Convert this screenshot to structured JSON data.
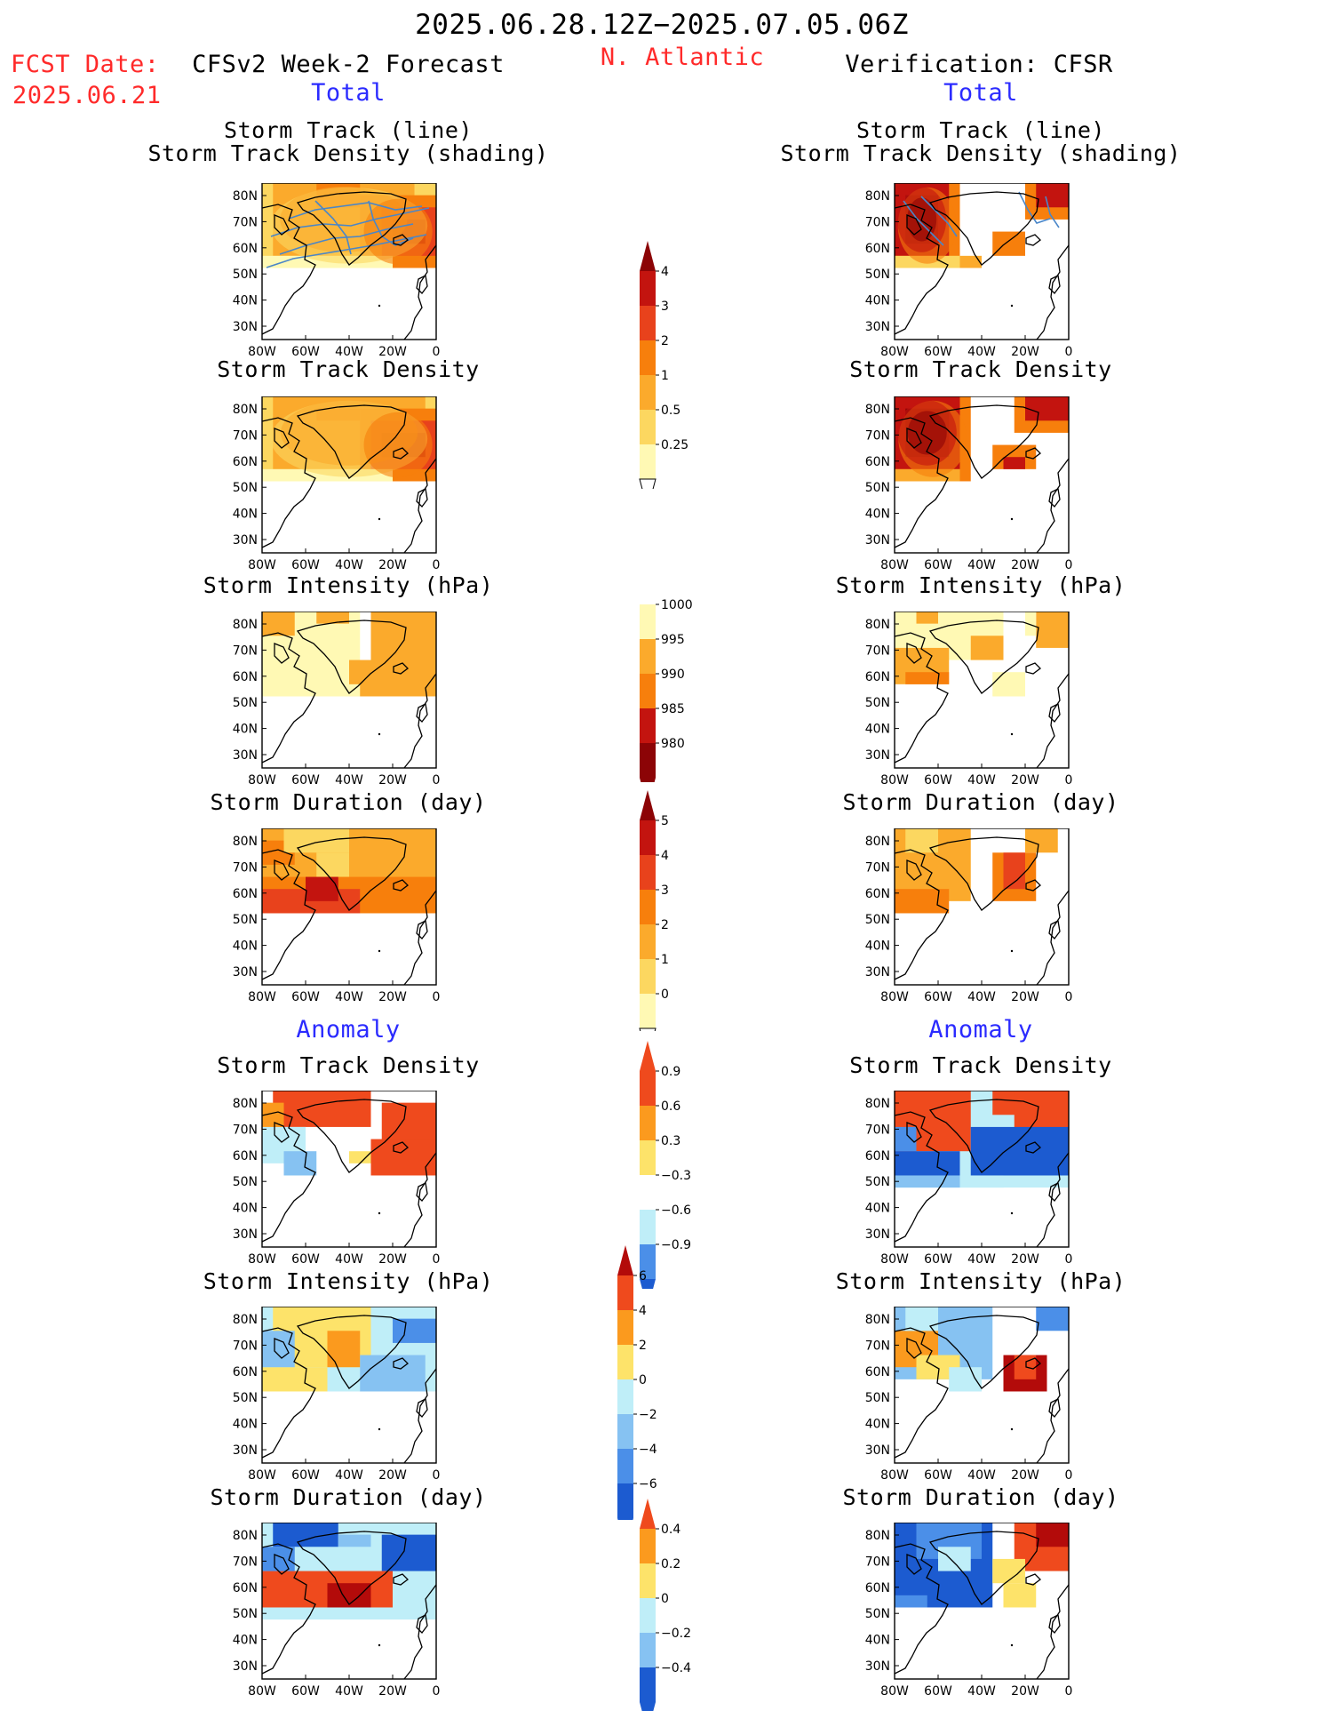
{
  "header": {
    "period": "2025.06.28.12Z−2025.07.05.06Z",
    "fcst_label": "FCST Date:",
    "fcst_date": "2025.06.21",
    "forecast_title": "CFSv2 Week-2 Forecast",
    "region": "N. Atlantic",
    "verification_title": "Verification: CFSR",
    "total_left": "Total",
    "total_right": "Total",
    "anomaly_left": "Anomaly",
    "anomaly_right": "Anomaly"
  },
  "panel_titles": {
    "track_line": "Storm Track (line)",
    "track_shading": "Storm Track Density (shading)",
    "density": "Storm Track Density",
    "intensity": "Storm Intensity (hPa)",
    "duration": "Storm Duration (day)"
  },
  "axes": {
    "lat_labels": [
      "80N",
      "70N",
      "60N",
      "50N",
      "40N",
      "30N"
    ],
    "lon_labels": [
      "80W",
      "60W",
      "40W",
      "20W",
      "0"
    ]
  },
  "colors": {
    "seq": [
      "#fff9b4",
      "#fcd760",
      "#fbaa2c",
      "#f77f0c",
      "#e8421c",
      "#c3140f",
      "#8c0406"
    ],
    "div_warm": [
      "#fde36a",
      "#fb9a1e",
      "#ef4a1d",
      "#b30b0a"
    ],
    "div_cool": [
      "#bfeef8",
      "#86c2f2",
      "#4b8fe8",
      "#1c5bd0"
    ]
  },
  "chart_data": [
    {
      "type": "heatmap",
      "name": "forecast_total_storm_track_line_density",
      "xlim": [
        -80,
        0
      ],
      "ylim": [
        25,
        85
      ],
      "legend": [
        "0.25",
        "0.5",
        "1",
        "2",
        "3",
        "4"
      ]
    },
    {
      "type": "heatmap",
      "name": "verification_total_storm_track_line_density",
      "xlim": [
        -80,
        0
      ],
      "ylim": [
        25,
        85
      ]
    },
    {
      "type": "heatmap",
      "name": "forecast_total_storm_track_density",
      "xlim": [
        -80,
        0
      ],
      "ylim": [
        25,
        85
      ]
    },
    {
      "type": "heatmap",
      "name": "verification_total_storm_track_density",
      "xlim": [
        -80,
        0
      ],
      "ylim": [
        25,
        85
      ]
    },
    {
      "type": "heatmap",
      "name": "forecast_total_storm_intensity_hpa",
      "xlim": [
        -80,
        0
      ],
      "ylim": [
        25,
        85
      ],
      "legend": [
        "1000",
        "995",
        "990",
        "985",
        "980"
      ]
    },
    {
      "type": "heatmap",
      "name": "verification_total_storm_intensity_hpa",
      "xlim": [
        -80,
        0
      ],
      "ylim": [
        25,
        85
      ]
    },
    {
      "type": "heatmap",
      "name": "forecast_total_storm_duration_day",
      "xlim": [
        -80,
        0
      ],
      "ylim": [
        25,
        85
      ],
      "legend": [
        "0",
        "1",
        "2",
        "3",
        "4",
        "5"
      ]
    },
    {
      "type": "heatmap",
      "name": "verification_total_storm_duration_day",
      "xlim": [
        -80,
        0
      ],
      "ylim": [
        25,
        85
      ]
    },
    {
      "type": "heatmap",
      "name": "forecast_anomaly_storm_track_density",
      "xlim": [
        -80,
        0
      ],
      "ylim": [
        25,
        85
      ],
      "legend": [
        "−0.9",
        "−0.6",
        "−0.3",
        "0.3",
        "0.6",
        "0.9"
      ]
    },
    {
      "type": "heatmap",
      "name": "verification_anomaly_storm_track_density",
      "xlim": [
        -80,
        0
      ],
      "ylim": [
        25,
        85
      ]
    },
    {
      "type": "heatmap",
      "name": "forecast_anomaly_storm_intensity_hpa",
      "xlim": [
        -80,
        0
      ],
      "ylim": [
        25,
        85
      ],
      "legend": [
        "−6",
        "−4",
        "−2",
        "0",
        "2",
        "4",
        "6"
      ]
    },
    {
      "type": "heatmap",
      "name": "verification_anomaly_storm_intensity_hpa",
      "xlim": [
        -80,
        0
      ],
      "ylim": [
        25,
        85
      ]
    },
    {
      "type": "heatmap",
      "name": "forecast_anomaly_storm_duration_day",
      "xlim": [
        -80,
        0
      ],
      "ylim": [
        25,
        85
      ],
      "legend": [
        "−0.4",
        "−0.2",
        "0",
        "0.2",
        "0.4"
      ]
    },
    {
      "type": "heatmap",
      "name": "verification_anomaly_storm_duration_day",
      "xlim": [
        -80,
        0
      ],
      "ylim": [
        25,
        85
      ]
    }
  ]
}
